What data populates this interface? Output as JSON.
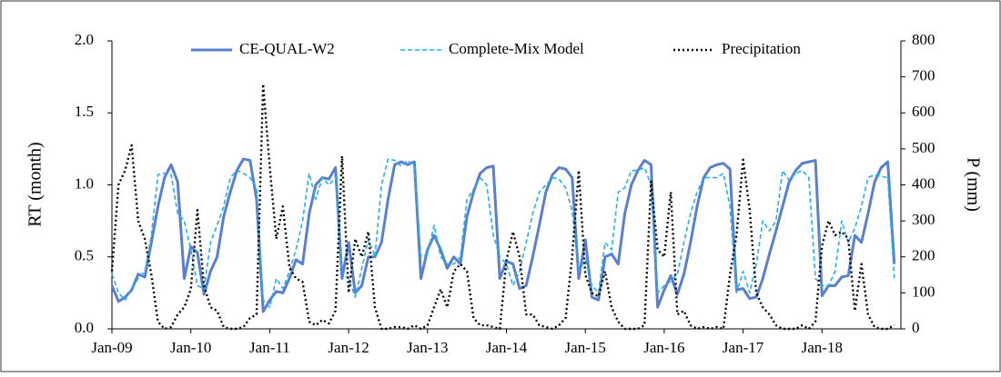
{
  "chart_data": {
    "type": "line",
    "ylabel": "RT (month)",
    "y2label": "P (mm)",
    "categories": [
      "Jan-09",
      null,
      null,
      null,
      null,
      null,
      null,
      null,
      null,
      null,
      null,
      null,
      "Jan-10",
      null,
      null,
      null,
      null,
      null,
      null,
      null,
      null,
      null,
      null,
      null,
      "Jan-11",
      null,
      null,
      null,
      null,
      null,
      null,
      null,
      null,
      null,
      null,
      null,
      "Jan-12",
      null,
      null,
      null,
      null,
      null,
      null,
      null,
      null,
      null,
      null,
      null,
      "Jan-13",
      null,
      null,
      null,
      null,
      null,
      null,
      null,
      null,
      null,
      null,
      null,
      "Jan-14",
      null,
      null,
      null,
      null,
      null,
      null,
      null,
      null,
      null,
      null,
      null,
      "Jan-15",
      null,
      null,
      null,
      null,
      null,
      null,
      null,
      null,
      null,
      null,
      null,
      "Jan-16",
      null,
      null,
      null,
      null,
      null,
      null,
      null,
      null,
      null,
      null,
      null,
      "Jan-17",
      null,
      null,
      null,
      null,
      null,
      null,
      null,
      null,
      null,
      null,
      null,
      "Jan-18",
      null,
      null,
      null,
      null,
      null,
      null,
      null,
      null,
      null,
      null,
      null
    ],
    "series": [
      {
        "name": "CE-QUAL-W2",
        "color": "#5b7fcf",
        "style": "solid",
        "values": [
          0.3,
          0.19,
          0.22,
          0.27,
          0.38,
          0.36,
          0.6,
          0.85,
          1.05,
          1.14,
          1.02,
          0.35,
          0.57,
          0.53,
          0.24,
          0.4,
          0.5,
          0.78,
          0.95,
          1.1,
          1.18,
          1.17,
          0.9,
          0.12,
          0.2,
          0.26,
          0.25,
          0.35,
          0.48,
          0.45,
          0.8,
          1.0,
          1.05,
          1.04,
          1.12,
          0.35,
          0.6,
          0.25,
          0.3,
          0.5,
          0.5,
          0.6,
          0.9,
          1.14,
          1.16,
          1.14,
          1.16,
          0.35,
          0.55,
          0.65,
          0.55,
          0.42,
          0.5,
          0.45,
          0.78,
          0.95,
          1.08,
          1.12,
          1.13,
          0.35,
          0.47,
          0.45,
          0.28,
          0.3,
          0.5,
          0.72,
          0.95,
          1.07,
          1.12,
          1.11,
          1.05,
          0.35,
          0.62,
          0.22,
          0.2,
          0.5,
          0.52,
          0.45,
          0.8,
          1.0,
          1.1,
          1.17,
          1.14,
          0.15,
          0.27,
          0.37,
          0.24,
          0.38,
          0.6,
          0.85,
          1.05,
          1.12,
          1.14,
          1.15,
          1.11,
          0.27,
          0.28,
          0.21,
          0.22,
          0.35,
          0.52,
          0.68,
          0.85,
          1.02,
          1.1,
          1.15,
          1.16,
          1.17,
          0.23,
          0.3,
          0.3,
          0.36,
          0.37,
          0.65,
          0.6,
          0.8,
          1.02,
          1.12,
          1.16,
          0.45
        ]
      },
      {
        "name": "Complete-Mix Model",
        "color": "#22b2ea",
        "style": "dashed",
        "values": [
          0.38,
          0.25,
          0.2,
          0.28,
          0.35,
          0.4,
          0.65,
          1.07,
          1.08,
          1.07,
          0.8,
          0.75,
          0.55,
          0.3,
          0.28,
          0.6,
          0.72,
          0.85,
          1.05,
          1.1,
          1.08,
          1.05,
          0.98,
          0.2,
          0.15,
          0.35,
          0.28,
          0.4,
          0.55,
          0.75,
          1.08,
          0.9,
          1.05,
          1.0,
          1.05,
          0.38,
          0.35,
          0.22,
          0.42,
          0.62,
          0.5,
          1.0,
          1.18,
          1.17,
          1.13,
          1.17,
          1.12,
          0.5,
          0.52,
          0.72,
          0.5,
          0.45,
          0.45,
          0.5,
          0.9,
          0.97,
          1.05,
          1.0,
          0.65,
          0.5,
          0.45,
          0.3,
          0.4,
          0.6,
          0.8,
          0.95,
          1.0,
          1.05,
          1.04,
          0.98,
          0.82,
          0.4,
          0.48,
          0.3,
          0.25,
          0.6,
          0.55,
          0.95,
          0.98,
          1.1,
          1.1,
          1.12,
          1.0,
          0.25,
          0.3,
          0.33,
          0.38,
          0.6,
          0.8,
          0.95,
          1.05,
          1.05,
          1.05,
          1.08,
          0.85,
          0.25,
          0.4,
          0.25,
          0.45,
          0.75,
          0.68,
          0.75,
          1.1,
          1.03,
          1.08,
          1.1,
          1.05,
          0.35,
          0.3,
          0.3,
          0.4,
          0.75,
          0.6,
          0.7,
          0.85,
          1.05,
          1.07,
          1.06,
          1.05,
          0.35
        ]
      },
      {
        "name": "Precipitation",
        "color": "#000000",
        "style": "dotted",
        "axis": "y2",
        "values": [
          160,
          400,
          440,
          510,
          300,
          250,
          150,
          20,
          0,
          5,
          40,
          60,
          110,
          330,
          120,
          60,
          50,
          5,
          0,
          0,
          5,
          30,
          40,
          680,
          450,
          250,
          340,
          170,
          140,
          130,
          20,
          10,
          25,
          15,
          50,
          480,
          100,
          250,
          200,
          270,
          60,
          0,
          0,
          5,
          5,
          0,
          10,
          0,
          10,
          60,
          110,
          60,
          160,
          180,
          160,
          30,
          10,
          10,
          5,
          0,
          190,
          270,
          200,
          40,
          40,
          10,
          5,
          0,
          10,
          30,
          200,
          440,
          150,
          100,
          90,
          160,
          60,
          20,
          0,
          0,
          0,
          10,
          410,
          220,
          200,
          380,
          40,
          50,
          10,
          0,
          5,
          0,
          5,
          0,
          150,
          260,
          470,
          330,
          100,
          60,
          40,
          10,
          0,
          0,
          0,
          10,
          0,
          20,
          230,
          300,
          260,
          270,
          250,
          50,
          180,
          40,
          5,
          0,
          0,
          10
        ]
      }
    ],
    "ylim": [
      0,
      2
    ],
    "yticks": [
      {
        "value": 0,
        "label": "0.0"
      },
      0.5,
      {
        "value": 1,
        "label": "1.0"
      },
      1.5,
      {
        "value": 2,
        "label": "2.0"
      }
    ],
    "y2lim": [
      0,
      800
    ],
    "y2ticks": [
      0,
      100,
      200,
      300,
      400,
      500,
      600,
      700,
      800
    ],
    "legend": "top"
  }
}
